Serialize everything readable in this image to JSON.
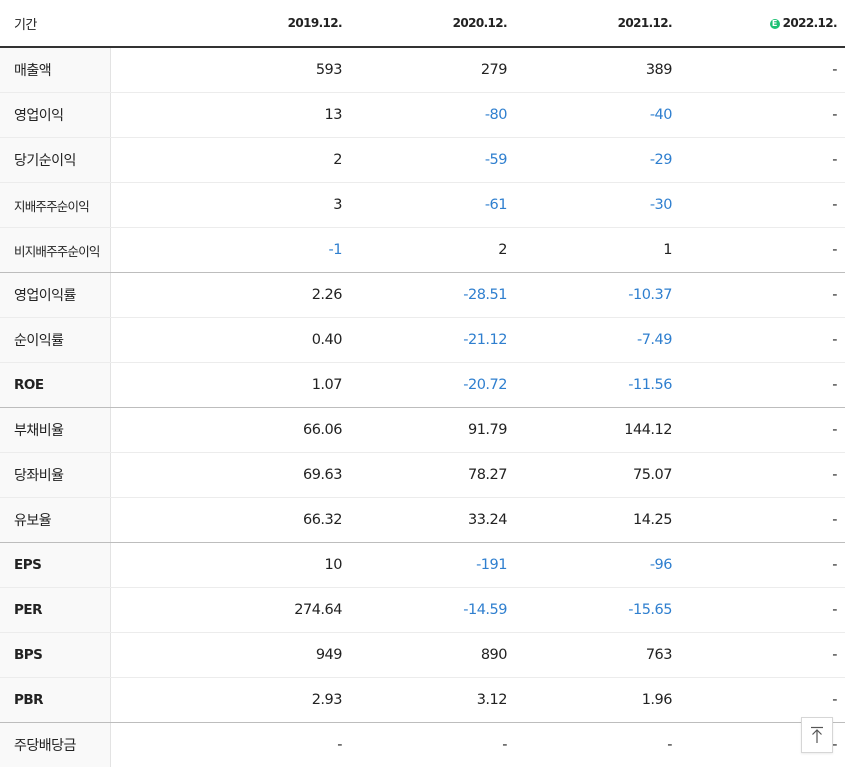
{
  "table": {
    "header": {
      "label": "기간",
      "columns": [
        {
          "text": "2019.12.",
          "estimate": false
        },
        {
          "text": "2020.12.",
          "estimate": false
        },
        {
          "text": "2021.12.",
          "estimate": false
        },
        {
          "text": "2022.12.",
          "estimate": true,
          "estimate_mark": "E"
        }
      ]
    },
    "rows": [
      {
        "label": "매출액",
        "values": [
          "593",
          "279",
          "389",
          "-"
        ]
      },
      {
        "label": "영업이익",
        "values": [
          "13",
          "-80",
          "-40",
          "-"
        ]
      },
      {
        "label": "당기순이익",
        "values": [
          "2",
          "-59",
          "-29",
          "-"
        ]
      },
      {
        "label": "지배주주순이익",
        "values": [
          "3",
          "-61",
          "-30",
          "-"
        ]
      },
      {
        "label": "비지배주주순이익",
        "values": [
          "-1",
          "2",
          "1",
          "-"
        ]
      },
      {
        "label": "영업이익률",
        "values": [
          "2.26",
          "-28.51",
          "-10.37",
          "-"
        ]
      },
      {
        "label": "순이익률",
        "values": [
          "0.40",
          "-21.12",
          "-7.49",
          "-"
        ]
      },
      {
        "label": "ROE",
        "values": [
          "1.07",
          "-20.72",
          "-11.56",
          "-"
        ]
      },
      {
        "label": "부채비율",
        "values": [
          "66.06",
          "91.79",
          "144.12",
          "-"
        ]
      },
      {
        "label": "당좌비율",
        "values": [
          "69.63",
          "78.27",
          "75.07",
          "-"
        ]
      },
      {
        "label": "유보율",
        "values": [
          "66.32",
          "33.24",
          "14.25",
          "-"
        ]
      },
      {
        "label": "EPS",
        "values": [
          "10",
          "-191",
          "-96",
          "-"
        ]
      },
      {
        "label": "PER",
        "values": [
          "274.64",
          "-14.59",
          "-15.65",
          "-"
        ]
      },
      {
        "label": "BPS",
        "values": [
          "949",
          "890",
          "763",
          "-"
        ]
      },
      {
        "label": "PBR",
        "values": [
          "2.93",
          "3.12",
          "1.96",
          "-"
        ]
      },
      {
        "label": "주당배당금",
        "values": [
          "-",
          "-",
          "-",
          "-"
        ]
      }
    ]
  },
  "colors": {
    "negative": "#2f7fcf",
    "positive": "#222222",
    "estimate_badge": "#1ec073"
  },
  "scroll_top_button": {
    "icon": "arrow-up-to-top-icon"
  }
}
